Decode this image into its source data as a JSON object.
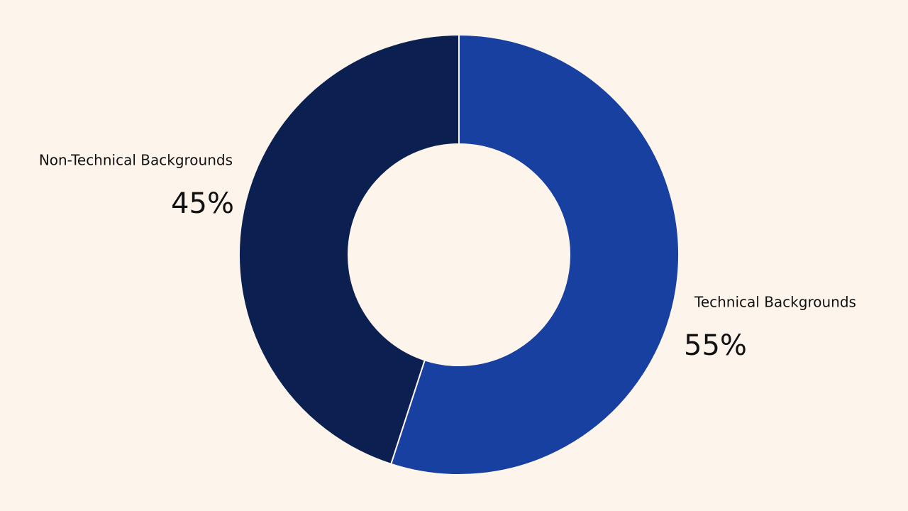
{
  "chart_data": {
    "type": "donut",
    "categories": [
      "Technical Backgrounds",
      "Non-Technical Backgrounds"
    ],
    "values": [
      55,
      45
    ],
    "value_labels": [
      "55%",
      "45%"
    ],
    "colors": [
      "#1740a0",
      "#0b2050"
    ]
  }
}
